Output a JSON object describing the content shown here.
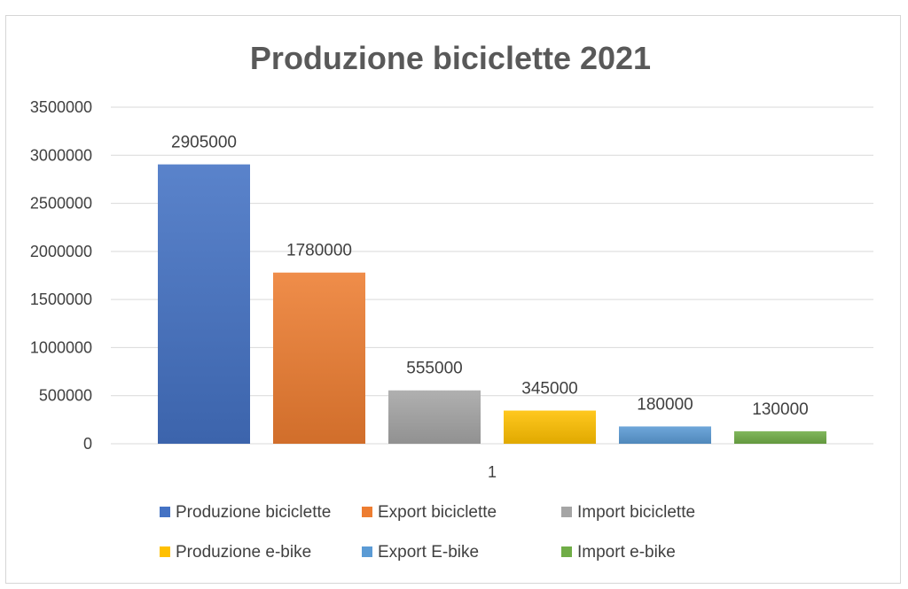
{
  "chart_data": {
    "type": "bar",
    "title": "Produzione biciclette 2021",
    "categories": [
      "1"
    ],
    "ylim": [
      0,
      3500000
    ],
    "yticks": [
      0,
      500000,
      1000000,
      1500000,
      2000000,
      2500000,
      3000000,
      3500000
    ],
    "grid": true,
    "legend_position": "bottom",
    "series": [
      {
        "name": "Produzione biciclette",
        "values": [
          2905000
        ],
        "color": "#4472C4",
        "label": "2905000"
      },
      {
        "name": "Export biciclette",
        "values": [
          1780000
        ],
        "color": "#ED7D31",
        "label": "1780000"
      },
      {
        "name": "Import biciclette",
        "values": [
          555000
        ],
        "color": "#A5A5A5",
        "label": "555000"
      },
      {
        "name": "Produzione e-bike",
        "values": [
          345000
        ],
        "color": "#FFC000",
        "label": "345000"
      },
      {
        "name": "Export E-bike",
        "values": [
          180000
        ],
        "color": "#5B9BD5",
        "label": "180000"
      },
      {
        "name": "Import e-bike",
        "values": [
          130000
        ],
        "color": "#70AD47",
        "label": "130000"
      }
    ]
  }
}
